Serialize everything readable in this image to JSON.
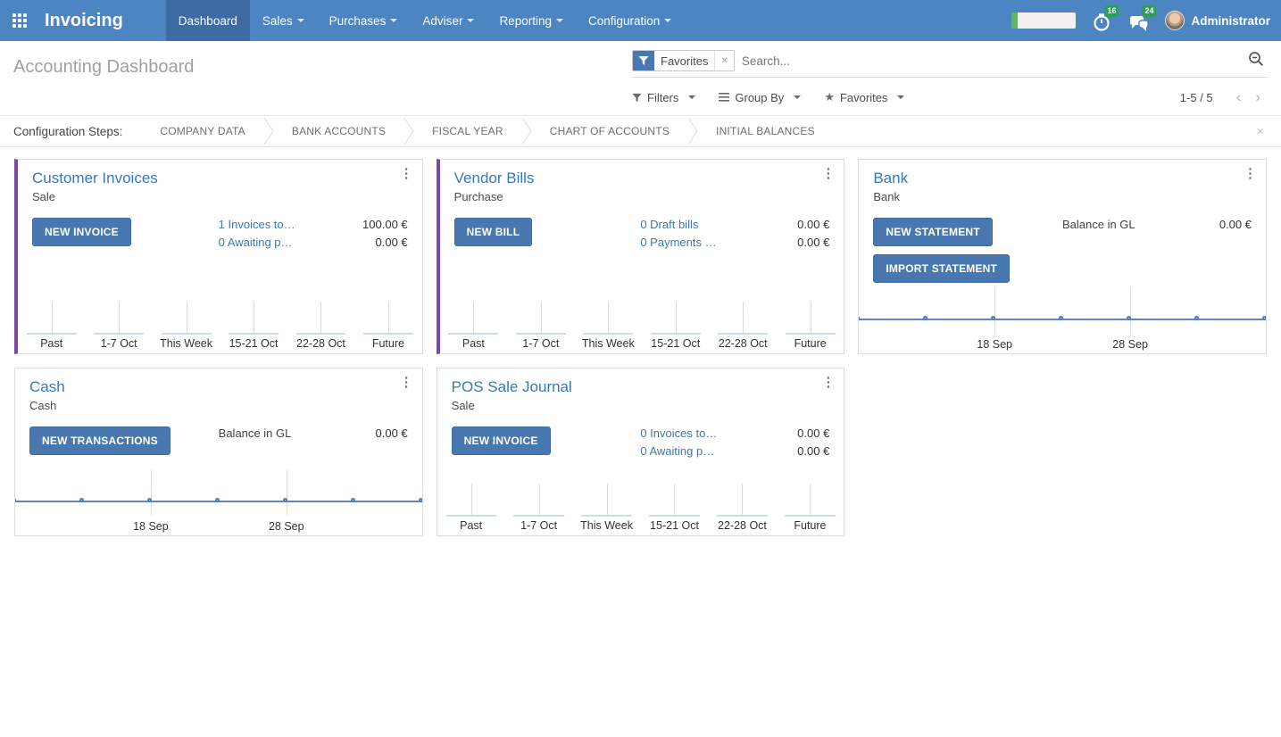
{
  "colors": {
    "navbar_bg": "#4c85c2",
    "navbar_active_bg": "#3d6ba3",
    "badge_green": "#2e9e5b",
    "timer_green": "#5cb85c",
    "button_blue": "#4878af",
    "link_blue": "#3a78b5",
    "accent_purple": "#7d47a4",
    "line_blue": "#5e86c0",
    "bar_fill": "#ccdcee"
  },
  "navbar": {
    "app_name": "Invoicing",
    "menu_items": [
      {
        "label": "Dashboard",
        "active": true
      },
      {
        "label": "Sales",
        "active": false
      },
      {
        "label": "Purchases",
        "active": false
      },
      {
        "label": "Adviser",
        "active": false
      },
      {
        "label": "Reporting",
        "active": false
      },
      {
        "label": "Configuration",
        "active": false
      }
    ],
    "timer_progress_percent": 9,
    "activity_badge": "16",
    "messages_badge": "24",
    "user_name": "Administrator"
  },
  "control_panel": {
    "title": "Accounting Dashboard",
    "search": {
      "facet_label": "Favorites",
      "facet_remove": "x",
      "placeholder": "Search..."
    },
    "filters_label": "Filters",
    "group_by_label": "Group By",
    "favorites_label": "Favorites",
    "pager": "1-5 / 5",
    "pager_prev": "‹",
    "pager_next": "›"
  },
  "config_steps": {
    "label": "Configuration Steps:",
    "steps": [
      "COMPANY DATA",
      "BANK ACCOUNTS",
      "FISCAL YEAR",
      "CHART OF ACCOUNTS",
      "INITIAL BALANCES"
    ],
    "close": "×"
  },
  "cards": [
    {
      "title": "Customer Invoices",
      "subtitle": "Sale",
      "accent": true,
      "buttons": [
        "NEW INVOICE"
      ],
      "rows": [
        {
          "label": "1 Invoices to…",
          "value": "100.00 €"
        },
        {
          "label": "0 Awaiting p…",
          "value": "0.00 €"
        }
      ]
    },
    {
      "title": "Vendor Bills",
      "subtitle": "Purchase",
      "accent": true,
      "buttons": [
        "NEW BILL"
      ],
      "rows": [
        {
          "label": "0 Draft bills",
          "value": "0.00 €"
        },
        {
          "label": "0 Payments …",
          "value": "0.00 €"
        }
      ]
    },
    {
      "title": "Bank",
      "subtitle": "Bank",
      "accent": false,
      "buttons": [
        "NEW STATEMENT",
        "IMPORT STATEMENT"
      ],
      "rows": [
        {
          "label": "Balance in GL",
          "value": "0.00 €"
        }
      ]
    },
    {
      "title": "Cash",
      "subtitle": "Cash",
      "accent": false,
      "buttons": [
        "NEW TRANSACTIONS"
      ],
      "rows": [
        {
          "label": "Balance in GL",
          "value": "0.00 €"
        }
      ]
    },
    {
      "title": "POS Sale Journal",
      "subtitle": "Sale",
      "accent": false,
      "buttons": [
        "NEW INVOICE"
      ],
      "rows": [
        {
          "label": "0 Invoices to…",
          "value": "0.00 €"
        },
        {
          "label": "0 Awaiting p…",
          "value": "0.00 €"
        }
      ]
    }
  ],
  "chart_data": [
    {
      "type": "bar",
      "title": "Customer Invoices weekly totals",
      "categories": [
        "Past",
        "1-7 Oct",
        "This Week",
        "15-21 Oct",
        "22-28 Oct",
        "Future"
      ],
      "values": [
        0,
        0,
        0,
        0,
        0,
        0
      ],
      "ylim": [
        0,
        1
      ],
      "grid": false
    },
    {
      "type": "bar",
      "title": "Vendor Bills weekly totals",
      "categories": [
        "Past",
        "1-7 Oct",
        "This Week",
        "15-21 Oct",
        "22-28 Oct",
        "Future"
      ],
      "values": [
        0,
        0,
        0,
        0,
        0,
        0
      ],
      "ylim": [
        0,
        1
      ],
      "grid": false
    },
    {
      "type": "line",
      "title": "Bank balance",
      "x_labels": [
        "18 Sep",
        "28 Sep"
      ],
      "values": [
        0,
        0,
        0,
        0,
        0,
        0,
        0
      ],
      "ylim": [
        0,
        1
      ],
      "grid": true
    },
    {
      "type": "line",
      "title": "Cash balance",
      "x_labels": [
        "18 Sep",
        "28 Sep"
      ],
      "values": [
        0,
        0,
        0,
        0,
        0,
        0,
        0
      ],
      "ylim": [
        0,
        1
      ],
      "grid": true
    },
    {
      "type": "bar",
      "title": "POS Sale Journal weekly totals",
      "categories": [
        "Past",
        "1-7 Oct",
        "This Week",
        "15-21 Oct",
        "22-28 Oct",
        "Future"
      ],
      "values": [
        0,
        0,
        0,
        0,
        0,
        0
      ],
      "ylim": [
        0,
        1
      ],
      "grid": false
    }
  ]
}
